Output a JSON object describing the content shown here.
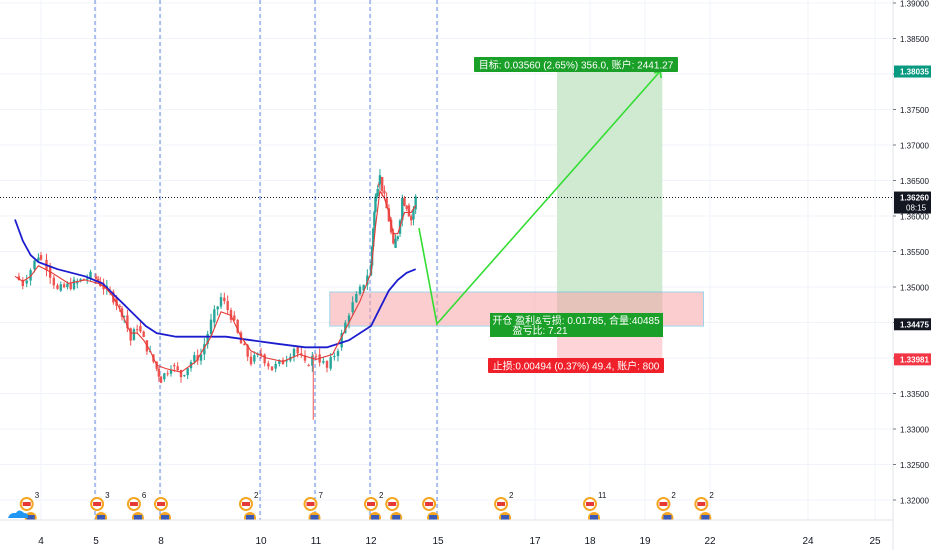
{
  "chart_data": {
    "type": "candlestick",
    "y_axis": {
      "range": [
        1.3165,
        1.3915
      ],
      "ticks": [
        "1.39000",
        "1.38500",
        "1.38000",
        "1.37500",
        "1.37000",
        "1.36500",
        "1.36000",
        "1.35500",
        "1.35000",
        "1.34500",
        "1.34000",
        "1.33500",
        "1.33000",
        "1.32500",
        "1.32000"
      ],
      "tick_values": [
        1.39,
        1.385,
        1.38,
        1.375,
        1.37,
        1.365,
        1.36,
        1.355,
        1.35,
        1.345,
        1.34,
        1.335,
        1.33,
        1.325,
        1.32
      ]
    },
    "x_axis": {
      "ticks": [
        "4",
        "5",
        "8",
        "10",
        "11",
        "12",
        "15",
        "17",
        "18",
        "19",
        "22",
        "24",
        "25"
      ],
      "tick_days": [
        4,
        5,
        8,
        10,
        11,
        12,
        15,
        17,
        18,
        19,
        22,
        24,
        25
      ]
    },
    "session_dividers": [
      5,
      8,
      10,
      11,
      12,
      15
    ],
    "price_series_close": [
      [
        3.0,
        1.3515
      ],
      [
        3.3,
        1.3505
      ],
      [
        3.6,
        1.3525
      ],
      [
        3.9,
        1.3545
      ],
      [
        4.1,
        1.353
      ],
      [
        4.3,
        1.3495
      ],
      [
        4.6,
        1.3505
      ],
      [
        4.9,
        1.3515
      ],
      [
        5.2,
        1.3505
      ],
      [
        5.5,
        1.3495
      ],
      [
        5.8,
        1.3485
      ],
      [
        6.1,
        1.347
      ],
      [
        6.3,
        1.346
      ],
      [
        6.6,
        1.3425
      ],
      [
        6.9,
        1.3445
      ],
      [
        7.2,
        1.3425
      ],
      [
        7.5,
        1.3405
      ],
      [
        7.8,
        1.3385
      ],
      [
        8.0,
        1.337
      ],
      [
        8.2,
        1.339
      ],
      [
        8.4,
        1.3375
      ],
      [
        8.6,
        1.3395
      ],
      [
        8.8,
        1.3405
      ],
      [
        9.0,
        1.345
      ],
      [
        9.2,
        1.3485
      ],
      [
        9.4,
        1.346
      ],
      [
        9.6,
        1.342
      ],
      [
        9.8,
        1.3395
      ],
      [
        10.0,
        1.3405
      ],
      [
        10.2,
        1.3385
      ],
      [
        10.4,
        1.3395
      ],
      [
        10.6,
        1.3415
      ],
      [
        10.8,
        1.339
      ],
      [
        11.0,
        1.3405
      ],
      [
        11.2,
        1.3385
      ],
      [
        11.4,
        1.3415
      ],
      [
        11.6,
        1.3465
      ],
      [
        11.8,
        1.3495
      ],
      [
        12.0,
        1.353
      ],
      [
        12.1,
        1.3585
      ],
      [
        12.2,
        1.3625
      ],
      [
        12.3,
        1.3645
      ],
      [
        12.4,
        1.3655
      ],
      [
        12.6,
        1.3625
      ],
      [
        12.8,
        1.3595
      ],
      [
        13.0,
        1.3555
      ],
      [
        13.2,
        1.3575
      ],
      [
        13.4,
        1.3625
      ],
      [
        13.6,
        1.3615
      ],
      [
        13.8,
        1.3595
      ],
      [
        14.0,
        1.3625
      ]
    ],
    "ma_slow": [
      [
        3.0,
        1.3595
      ],
      [
        3.3,
        1.3565
      ],
      [
        3.6,
        1.3545
      ],
      [
        3.9,
        1.3535
      ],
      [
        4.3,
        1.3525
      ],
      [
        4.8,
        1.3515
      ],
      [
        5.3,
        1.3505
      ],
      [
        5.8,
        1.349
      ],
      [
        6.3,
        1.3475
      ],
      [
        6.8,
        1.346
      ],
      [
        7.3,
        1.3445
      ],
      [
        7.8,
        1.3435
      ],
      [
        8.3,
        1.343
      ],
      [
        8.8,
        1.343
      ],
      [
        9.3,
        1.343
      ],
      [
        9.8,
        1.3425
      ],
      [
        10.3,
        1.342
      ],
      [
        10.8,
        1.3415
      ],
      [
        11.2,
        1.3415
      ],
      [
        11.6,
        1.3425
      ],
      [
        12.0,
        1.3445
      ],
      [
        12.4,
        1.347
      ],
      [
        12.8,
        1.3495
      ],
      [
        13.2,
        1.351
      ],
      [
        13.6,
        1.352
      ],
      [
        14.0,
        1.3525
      ]
    ],
    "ma_fast": [
      [
        3.0,
        1.3515
      ],
      [
        3.3,
        1.3508
      ],
      [
        3.6,
        1.3515
      ],
      [
        3.9,
        1.353
      ],
      [
        4.2,
        1.352
      ],
      [
        4.5,
        1.3505
      ],
      [
        4.8,
        1.351
      ],
      [
        5.1,
        1.3505
      ],
      [
        5.4,
        1.35
      ],
      [
        5.7,
        1.349
      ],
      [
        6.0,
        1.3475
      ],
      [
        6.3,
        1.3455
      ],
      [
        6.6,
        1.3435
      ],
      [
        6.9,
        1.3435
      ],
      [
        7.2,
        1.3425
      ],
      [
        7.5,
        1.341
      ],
      [
        7.8,
        1.339
      ],
      [
        8.1,
        1.3385
      ],
      [
        8.4,
        1.338
      ],
      [
        8.7,
        1.3395
      ],
      [
        9.0,
        1.343
      ],
      [
        9.2,
        1.3465
      ],
      [
        9.4,
        1.346
      ],
      [
        9.6,
        1.343
      ],
      [
        9.8,
        1.341
      ],
      [
        10.1,
        1.34
      ],
      [
        10.4,
        1.3395
      ],
      [
        10.7,
        1.3405
      ],
      [
        11.0,
        1.3398
      ],
      [
        11.3,
        1.3405
      ],
      [
        11.6,
        1.345
      ],
      [
        11.8,
        1.348
      ],
      [
        12.0,
        1.352
      ],
      [
        12.2,
        1.3585
      ],
      [
        12.4,
        1.3635
      ],
      [
        12.6,
        1.3625
      ],
      [
        12.8,
        1.3605
      ],
      [
        13.0,
        1.3575
      ],
      [
        13.2,
        1.3575
      ],
      [
        13.5,
        1.3605
      ],
      [
        13.8,
        1.3605
      ],
      [
        14.0,
        1.3615
      ]
    ],
    "position_tool": {
      "start_day": 17.4,
      "end_day": 19.8,
      "entry": 1.3448,
      "target": 1.3804,
      "stop": 1.3398,
      "target_label": "目标: 0.03560 (2.65%) 356.0, 账户: 2441.27",
      "entry_label_line1": "开仓 盈利&亏损: 0.01785, 合量:40485",
      "entry_label_line2": "盈亏比: 7.21",
      "stop_label": "止损:0.00494 (0.37%) 49.4, 账户: 800"
    },
    "zone": {
      "start_day": 11.25,
      "end_day": 21.7,
      "low": 1.3445,
      "high": 1.3493
    },
    "projection_path": [
      [
        14.15,
        1.3583
      ],
      [
        14.95,
        1.3448
      ],
      [
        19.7,
        1.3804
      ]
    ],
    "price_markers": [
      {
        "value": 1.38035,
        "label": "1.38035",
        "color": "#089981"
      },
      {
        "value": 1.3626,
        "label": "1.36260",
        "color": "#131722",
        "sublabel": "08:15"
      },
      {
        "value": 1.34475,
        "label": "1.34475",
        "color": "#131722"
      },
      {
        "value": 1.33981,
        "label": "1.33981",
        "color": "#f23645"
      }
    ],
    "current_price_line": 1.3626,
    "event_icons": [
      {
        "day": 3.45,
        "count": "3"
      },
      {
        "day": 5.05,
        "count": "3"
      },
      {
        "day": 6.75,
        "count": "6"
      },
      {
        "day": 8.0,
        "count": ""
      },
      {
        "day": 9.7,
        "count": "2"
      },
      {
        "day": 10.9,
        "count": "7"
      },
      {
        "day": 12.0,
        "count": "2"
      },
      {
        "day": 12.95,
        "count": ""
      },
      {
        "day": 14.6,
        "count": ""
      },
      {
        "day": 16.3,
        "count": "2"
      },
      {
        "day": 18.0,
        "count": "11"
      },
      {
        "day": 19.85,
        "count": "2"
      },
      {
        "day": 21.6,
        "count": "2"
      }
    ]
  },
  "colors": {
    "up": "#26a69a",
    "down": "#ef5350",
    "ma_slow": "#1c1ccf",
    "ma_fast": "#e53935",
    "target_fill": "#c8e6c9",
    "stop_fill": "#ffcdd2",
    "target_label_bg": "#1a9f28",
    "stop_label_bg": "#f0202a",
    "projection": "#33dd33",
    "divider": "#3d6fd9"
  }
}
